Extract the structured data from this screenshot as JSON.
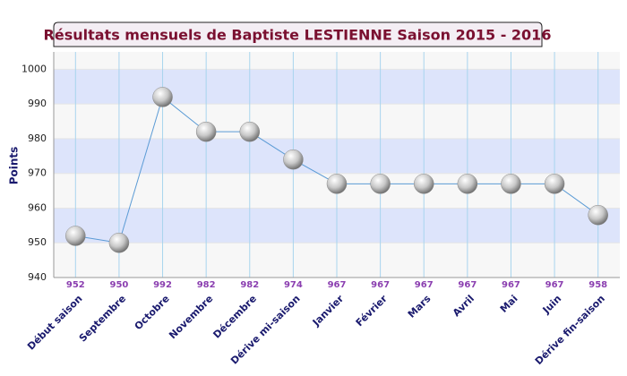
{
  "chart_data": {
    "type": "line",
    "title": "Résultats mensuels de Baptiste LESTIENNE Saison 2015 - 2016",
    "ylabel": "Points",
    "categories": [
      "Début saison",
      "Septembre",
      "Octobre",
      "Novembre",
      "Décembre",
      "Dérive mi-saison",
      "Janvier",
      "Février",
      "Mars",
      "Avril",
      "Mai",
      "Juin",
      "Dérive fin-saison"
    ],
    "series": [
      {
        "name": "Points",
        "color": "#5b9bd5",
        "values": [
          952,
          950,
          992,
          982,
          982,
          974,
          967,
          967,
          967,
          967,
          967,
          967,
          958
        ]
      }
    ],
    "ylim": [
      940,
      1005
    ],
    "yticks": [
      940,
      950,
      960,
      970,
      980,
      990,
      1000
    ],
    "grid": true
  }
}
